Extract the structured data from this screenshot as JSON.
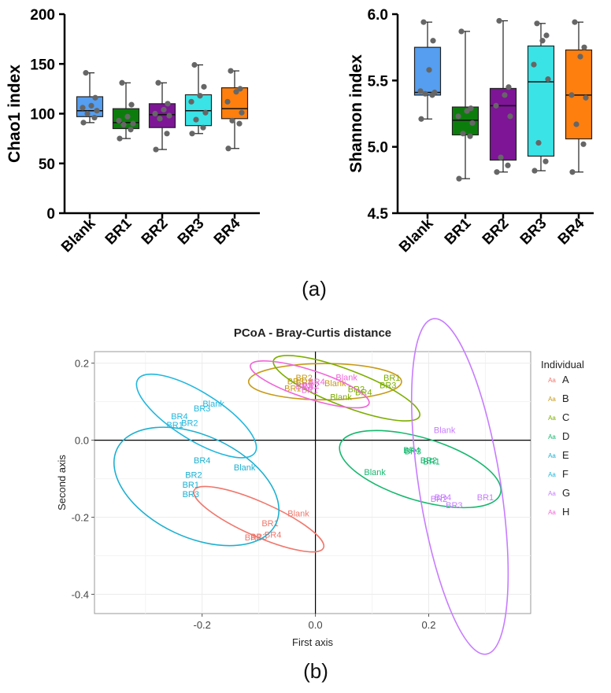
{
  "colors": {
    "Blank": "#559ef0",
    "BR1": "#0c7d0c",
    "BR2": "#7d1596",
    "BR3": "#3ae3e6",
    "BR4": "#ff7f0e",
    "A": "#f0776c",
    "B": "#c79a16",
    "C": "#7cae00",
    "D": "#15b86e",
    "E": "#1eb0d0",
    "F": "#22b7dd",
    "G": "#c77cff",
    "H": "#f066d8"
  },
  "captions": {
    "a": "(a)",
    "b": "(b)"
  },
  "chart_data": [
    {
      "type": "box",
      "ylabel": "Chao1 index",
      "ylim": [
        0,
        200
      ],
      "yticks": [
        0,
        50,
        100,
        150,
        200
      ],
      "categories": [
        "Blank",
        "BR1",
        "BR2",
        "BR3",
        "BR4"
      ],
      "boxes": [
        {
          "name": "Blank",
          "min": 91,
          "q1": 97,
          "median": 103,
          "q3": 117,
          "max": 141,
          "points": [
            91,
            96,
            100,
            103,
            106,
            108,
            116,
            141
          ]
        },
        {
          "name": "BR1",
          "min": 75,
          "q1": 85,
          "median": 91,
          "q3": 105,
          "max": 131,
          "points": [
            75,
            84,
            89,
            90,
            93,
            97,
            109,
            131
          ]
        },
        {
          "name": "BR2",
          "min": 64,
          "q1": 86,
          "median": 99,
          "q3": 110,
          "max": 131,
          "points": [
            64,
            80,
            95,
            98,
            100,
            104,
            110,
            131
          ]
        },
        {
          "name": "BR3",
          "min": 80,
          "q1": 88,
          "median": 103,
          "q3": 119,
          "max": 149,
          "points": [
            80,
            86,
            94,
            101,
            112,
            118,
            127,
            149
          ]
        },
        {
          "name": "BR4",
          "min": 65,
          "q1": 95,
          "median": 105,
          "q3": 126,
          "max": 143,
          "points": [
            65,
            90,
            93,
            101,
            112,
            122,
            125,
            143
          ]
        }
      ]
    },
    {
      "type": "box",
      "ylabel": "Shannon index",
      "ylim": [
        4.5,
        6.0
      ],
      "yticks": [
        "4.5",
        "5.0",
        "5.5",
        "6.0"
      ],
      "categories": [
        "Blank",
        "BR1",
        "BR2",
        "BR3",
        "BR4"
      ],
      "boxes": [
        {
          "name": "Blank",
          "min": 5.21,
          "q1": 5.39,
          "median": 5.41,
          "q3": 5.75,
          "max": 5.94,
          "points": [
            5.21,
            5.39,
            5.4,
            5.41,
            5.42,
            5.58,
            5.8,
            5.94
          ]
        },
        {
          "name": "BR1",
          "min": 4.76,
          "q1": 5.09,
          "median": 5.2,
          "q3": 5.3,
          "max": 5.87,
          "points": [
            4.76,
            5.08,
            5.1,
            5.18,
            5.23,
            5.27,
            5.29,
            5.87
          ]
        },
        {
          "name": "BR2",
          "min": 4.81,
          "q1": 4.9,
          "median": 5.31,
          "q3": 5.44,
          "max": 5.95,
          "points": [
            4.81,
            4.86,
            4.92,
            5.23,
            5.31,
            5.39,
            5.45,
            5.95
          ]
        },
        {
          "name": "BR3",
          "min": 4.82,
          "q1": 4.93,
          "median": 5.49,
          "q3": 5.76,
          "max": 5.93,
          "points": [
            4.82,
            4.89,
            5.03,
            5.51,
            5.62,
            5.8,
            5.84,
            5.93
          ]
        },
        {
          "name": "BR4",
          "min": 4.81,
          "q1": 5.06,
          "median": 5.39,
          "q3": 5.73,
          "max": 5.94,
          "points": [
            4.81,
            5.02,
            5.17,
            5.37,
            5.39,
            5.68,
            5.75,
            5.94
          ]
        }
      ]
    },
    {
      "type": "scatter",
      "title": "PCoA - Bray-Curtis distance",
      "xlabel": "First axis",
      "ylabel": "Second axis",
      "xlim": [
        -0.39,
        0.38
      ],
      "ylim": [
        -0.45,
        0.23
      ],
      "xticks": [
        "-0.2",
        "0.0",
        "0.2"
      ],
      "yticks": [
        "-0.4",
        "-0.2",
        "0.0",
        "0.2"
      ],
      "legend_title": "Individual",
      "legend": [
        "A",
        "B",
        "C",
        "D",
        "E",
        "F",
        "G",
        "H"
      ],
      "legend_key": "Aa",
      "groups": [
        {
          "name": "A",
          "ellipse": {
            "cx": -0.1,
            "cy": -0.205,
            "rx": 0.125,
            "ry": 0.03,
            "angle": 24
          },
          "points": [
            {
              "label": "Blank",
              "x": -0.03,
              "y": -0.19
            },
            {
              "label": "BR1",
              "x": -0.08,
              "y": -0.215
            },
            {
              "label": "BR4",
              "x": -0.075,
              "y": -0.245
            },
            {
              "label": "BR3",
              "x": -0.1,
              "y": -0.25
            },
            {
              "label": "BR2",
              "x": -0.11,
              "y": -0.252
            }
          ]
        },
        {
          "name": "B",
          "ellipse": {
            "cx": 0.017,
            "cy": 0.152,
            "rx": 0.135,
            "ry": 0.032,
            "angle": 0
          },
          "points": [
            {
              "label": "BR2",
              "x": -0.02,
              "y": 0.163
            },
            {
              "label": "BR3",
              "x": -0.035,
              "y": 0.153
            },
            {
              "label": "BR4",
              "x": -0.02,
              "y": 0.15
            },
            {
              "label": "BR1",
              "x": -0.04,
              "y": 0.135
            },
            {
              "label": "Blank",
              "x": 0.035,
              "y": 0.148
            }
          ]
        },
        {
          "name": "C",
          "ellipse": {
            "cx": 0.055,
            "cy": 0.135,
            "rx": 0.138,
            "ry": 0.032,
            "angle": 21
          },
          "points": [
            {
              "label": "BR1",
              "x": 0.135,
              "y": 0.163
            },
            {
              "label": "BR3",
              "x": 0.128,
              "y": 0.143
            },
            {
              "label": "BR2",
              "x": 0.072,
              "y": 0.133
            },
            {
              "label": "BR4",
              "x": 0.085,
              "y": 0.125
            },
            {
              "label": "Blank",
              "x": 0.045,
              "y": 0.113
            }
          ]
        },
        {
          "name": "D",
          "ellipse": {
            "cx": 0.185,
            "cy": -0.075,
            "rx": 0.148,
            "ry": 0.055,
            "angle": 17
          },
          "points": [
            {
              "label": "BR4",
              "x": 0.17,
              "y": -0.025
            },
            {
              "label": "BR3",
              "x": 0.172,
              "y": -0.028
            },
            {
              "label": "BR2",
              "x": 0.2,
              "y": -0.052
            },
            {
              "label": "BR1",
              "x": 0.205,
              "y": -0.055
            },
            {
              "label": "Blank",
              "x": 0.105,
              "y": -0.082
            }
          ]
        },
        {
          "name": "E",
          "ellipse": {
            "cx": -0.21,
            "cy": -0.12,
            "rx": 0.155,
            "ry": 0.09,
            "angle": 25
          },
          "points": [
            {
              "label": "BR4",
              "x": -0.2,
              "y": -0.052
            },
            {
              "label": "Blank",
              "x": -0.125,
              "y": -0.07
            },
            {
              "label": "BR2",
              "x": -0.215,
              "y": -0.09
            },
            {
              "label": "BR1",
              "x": -0.22,
              "y": -0.115
            },
            {
              "label": "BR3",
              "x": -0.22,
              "y": -0.14
            }
          ]
        },
        {
          "name": "F",
          "ellipse": {
            "cx": -0.21,
            "cy": 0.063,
            "rx": 0.122,
            "ry": 0.042,
            "angle": 32
          },
          "points": [
            {
              "label": "Blank",
              "x": -0.18,
              "y": 0.095
            },
            {
              "label": "BR3",
              "x": -0.2,
              "y": 0.083
            },
            {
              "label": "BR4",
              "x": -0.24,
              "y": 0.063
            },
            {
              "label": "BR2",
              "x": -0.222,
              "y": 0.045
            },
            {
              "label": "BR1",
              "x": -0.248,
              "y": 0.04
            }
          ]
        },
        {
          "name": "G",
          "ellipse": {
            "cx": 0.255,
            "cy": -0.12,
            "rx": 0.3,
            "ry": 0.072,
            "angle": -99
          },
          "points": [
            {
              "label": "Blank",
              "x": 0.228,
              "y": 0.027
            },
            {
              "label": "BR1",
              "x": 0.3,
              "y": -0.148
            },
            {
              "label": "BR4",
              "x": 0.225,
              "y": -0.148
            },
            {
              "label": "BR2",
              "x": 0.218,
              "y": -0.152
            },
            {
              "label": "BR3",
              "x": 0.245,
              "y": -0.168
            }
          ]
        },
        {
          "name": "H",
          "ellipse": {
            "cx": -0.01,
            "cy": 0.145,
            "rx": 0.11,
            "ry": 0.025,
            "angle": 18
          },
          "points": [
            {
              "label": "Blank",
              "x": 0.055,
              "y": 0.164
            },
            {
              "label": "BR4",
              "x": 0.002,
              "y": 0.152
            },
            {
              "label": "BR2",
              "x": -0.008,
              "y": 0.142
            },
            {
              "label": "BR3",
              "x": -0.02,
              "y": 0.14
            },
            {
              "label": "BR1",
              "x": -0.01,
              "y": 0.131
            }
          ]
        }
      ]
    }
  ]
}
